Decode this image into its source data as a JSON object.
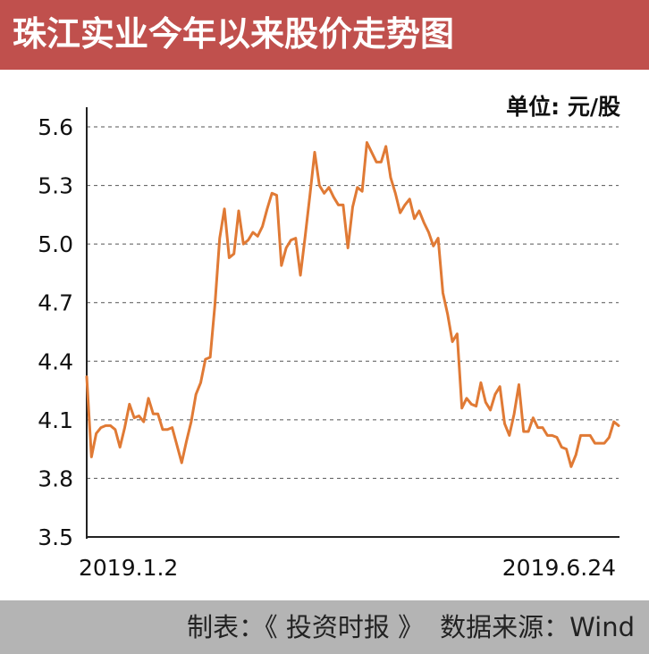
{
  "title": "珠江实业今年以来股价走势图",
  "footer": {
    "producer": "制表：《 投资时报 》",
    "source": "数据来源：Wind"
  },
  "colors": {
    "header_bg": "#c0504d",
    "line": "#e07a35",
    "footer_bg": "#b4b4b4"
  },
  "chart_data": {
    "type": "line",
    "unit_label": "单位: 元/股",
    "ylim": [
      3.5,
      5.6
    ],
    "yticks": [
      "5.6",
      "5.3",
      "5.0",
      "4.7",
      "4.4",
      "4.1",
      "3.8",
      "3.5"
    ],
    "x_labels": [
      "2019.1.2",
      "2019.6.24"
    ],
    "grid": "horizontal dashed",
    "series": [
      {
        "values": [
          4.32,
          3.91,
          4.03,
          4.06,
          4.07,
          4.07,
          4.05,
          3.96,
          4.06,
          4.18,
          4.11,
          4.12,
          4.09,
          4.21,
          4.13,
          4.13,
          4.05,
          4.05,
          4.06,
          3.97,
          3.88,
          3.99,
          4.09,
          4.23,
          4.29,
          4.41,
          4.42,
          4.69,
          5.03,
          5.18,
          4.93,
          4.95,
          5.17,
          5.0,
          5.02,
          5.06,
          5.04,
          5.09,
          5.18,
          5.26,
          5.25,
          4.89,
          4.98,
          5.02,
          5.03,
          4.84,
          5.04,
          5.25,
          5.47,
          5.3,
          5.26,
          5.29,
          5.24,
          5.2,
          5.2,
          4.98,
          5.19,
          5.29,
          5.27,
          5.52,
          5.47,
          5.42,
          5.42,
          5.5,
          5.34,
          5.26,
          5.16,
          5.2,
          5.23,
          5.13,
          5.17,
          5.11,
          5.06,
          4.99,
          5.03,
          4.75,
          4.64,
          4.5,
          4.54,
          4.16,
          4.21,
          4.18,
          4.17,
          4.29,
          4.19,
          4.15,
          4.23,
          4.27,
          4.08,
          4.02,
          4.13,
          4.28,
          4.04,
          4.04,
          4.11,
          4.06,
          4.06,
          4.02,
          4.02,
          4.01,
          3.96,
          3.95,
          3.86,
          3.92,
          4.02,
          4.02,
          4.02,
          3.98,
          3.98,
          3.98,
          4.01,
          4.09,
          4.07
        ]
      }
    ]
  }
}
